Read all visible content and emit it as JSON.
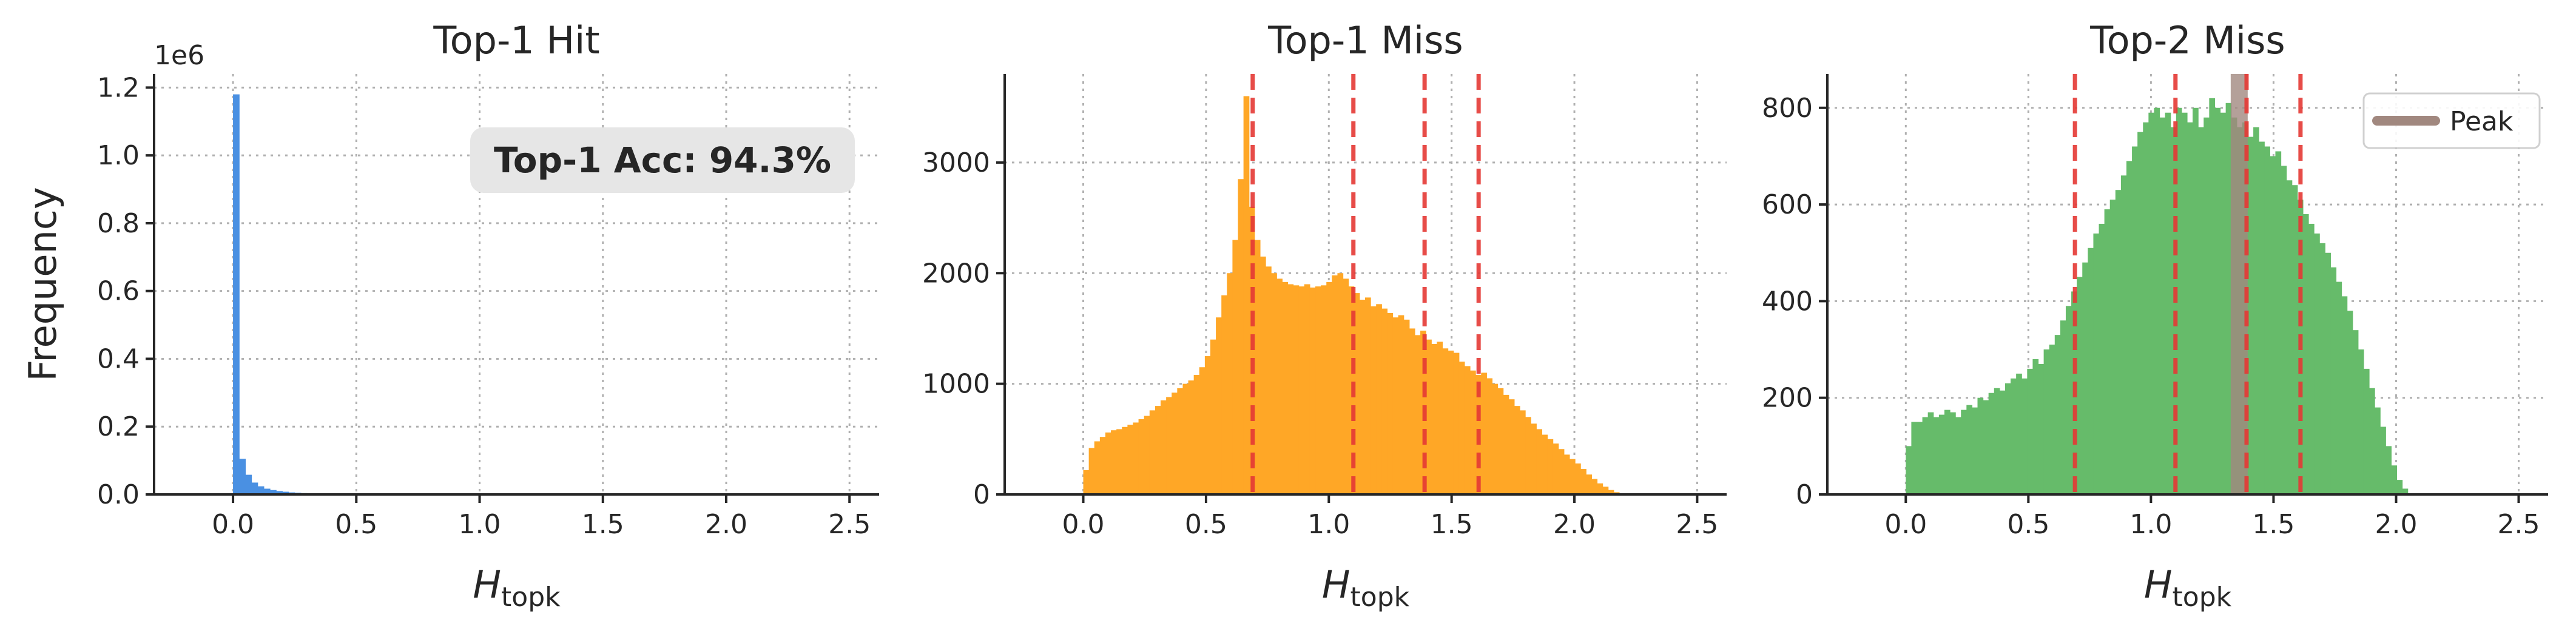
{
  "chart_data": [
    {
      "type": "histogram",
      "title": "Top-1 Hit",
      "xlabel_main": "H",
      "xlabel_sub": "topk",
      "ylabel": "Frequency",
      "offset_text": "1e6",
      "xlim": [
        -0.32,
        2.62
      ],
      "ylim": [
        0,
        1.24
      ],
      "x_ticks": [
        "0.0",
        "0.5",
        "1.0",
        "1.5",
        "2.0",
        "2.5"
      ],
      "y_ticks": [
        "0.0",
        "0.2",
        "0.4",
        "0.6",
        "0.8",
        "1.0",
        "1.2"
      ],
      "color": "#4a90e2",
      "bin_start": 0.0,
      "bin_width": 0.025,
      "counts": [
        1.18,
        0.105,
        0.058,
        0.035,
        0.024,
        0.017,
        0.013,
        0.01,
        0.008,
        0.006,
        0.005,
        0.004,
        0.0035,
        0.003,
        0.0025,
        0.002,
        0.0018,
        0.0016,
        0.0014,
        0.0012,
        0.001,
        0.0009,
        0.0008,
        0.0007,
        0.0006,
        0.0005,
        0.0005,
        0.0004,
        0.0004,
        0.0003
      ],
      "annotation": "Top-1 Acc: 94.3%",
      "vlines": [],
      "legend": null
    },
    {
      "type": "histogram",
      "title": "Top-1 Miss",
      "xlabel_main": "H",
      "xlabel_sub": "topk",
      "ylabel": "",
      "offset_text": "",
      "xlim": [
        -0.32,
        2.62
      ],
      "ylim": [
        0,
        3800
      ],
      "x_ticks": [
        "0.0",
        "0.5",
        "1.0",
        "1.5",
        "2.0",
        "2.5"
      ],
      "y_ticks": [
        "0",
        "1000",
        "2000",
        "3000"
      ],
      "color": "#ffa726",
      "bin_start": 0.0,
      "bin_width": 0.0225,
      "counts": [
        220,
        420,
        480,
        520,
        560,
        580,
        590,
        610,
        630,
        650,
        680,
        710,
        760,
        800,
        850,
        880,
        920,
        960,
        1000,
        1030,
        1080,
        1150,
        1250,
        1400,
        1600,
        1800,
        2000,
        2300,
        2850,
        3600,
        2600,
        2300,
        2150,
        2060,
        2000,
        1950,
        1920,
        1900,
        1890,
        1880,
        1900,
        1870,
        1880,
        1890,
        1920,
        1980,
        2000,
        1950,
        1880,
        1820,
        1760,
        1780,
        1700,
        1720,
        1680,
        1640,
        1600,
        1620,
        1580,
        1500,
        1440,
        1480,
        1400,
        1360,
        1380,
        1320,
        1300,
        1280,
        1200,
        1160,
        1120,
        1080,
        1100,
        1050,
        1000,
        960,
        900,
        860,
        800,
        760,
        700,
        640,
        590,
        540,
        500,
        460,
        410,
        360,
        320,
        280,
        230,
        180,
        140,
        100,
        70,
        40,
        20,
        8,
        3,
        1
      ],
      "annotation": "",
      "vlines": [
        0.69,
        1.1,
        1.39,
        1.61
      ],
      "legend": null
    },
    {
      "type": "histogram",
      "title": "Top-2 Miss",
      "xlabel_main": "H",
      "xlabel_sub": "topk",
      "ylabel": "",
      "offset_text": "",
      "xlim": [
        -0.32,
        2.62
      ],
      "ylim": [
        0,
        870
      ],
      "x_ticks": [
        "0.0",
        "0.5",
        "1.0",
        "1.5",
        "2.0",
        "2.5"
      ],
      "y_ticks": [
        "0",
        "200",
        "400",
        "600",
        "800"
      ],
      "color": "#66bb6a",
      "bin_start": 0.0,
      "bin_width": 0.0225,
      "counts": [
        100,
        150,
        150,
        160,
        170,
        160,
        165,
        175,
        170,
        160,
        175,
        185,
        180,
        200,
        195,
        210,
        220,
        215,
        230,
        240,
        250,
        240,
        260,
        280,
        270,
        300,
        310,
        330,
        360,
        390,
        420,
        450,
        480,
        510,
        540,
        560,
        590,
        610,
        630,
        660,
        690,
        720,
        750,
        770,
        790,
        800,
        780,
        790,
        760,
        800,
        790,
        770,
        800,
        760,
        780,
        820,
        800,
        790,
        810,
        780,
        760,
        770,
        740,
        760,
        730,
        720,
        700,
        710,
        680,
        650,
        640,
        610,
        580,
        560,
        540,
        520,
        500,
        470,
        440,
        410,
        380,
        340,
        300,
        260,
        220,
        180,
        140,
        100,
        60,
        30,
        12
      ],
      "annotation": "",
      "vlines": [
        0.69,
        1.1,
        1.39,
        1.61
      ],
      "peak": 1.36,
      "legend": {
        "label": "Peak",
        "placement": "top-right"
      }
    }
  ],
  "colors": {
    "vline": "#e53935",
    "peak": "#a1887f",
    "annotation_bg": "#e6e6e6",
    "text": "#262626"
  }
}
